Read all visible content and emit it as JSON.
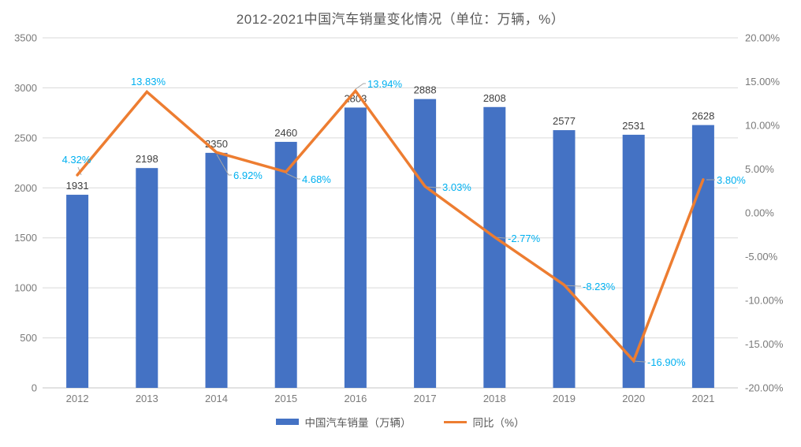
{
  "title": "2012-2021中国汽车销量变化情况（单位：万辆，%）",
  "chart_data": {
    "type": "bar+line",
    "categories": [
      "2012",
      "2013",
      "2014",
      "2015",
      "2016",
      "2017",
      "2018",
      "2019",
      "2020",
      "2021"
    ],
    "series": [
      {
        "name": "中国汽车销量（万辆）",
        "type": "bar",
        "color": "#4472C4",
        "values": [
          1931,
          2198,
          2350,
          2460,
          2803,
          2888,
          2808,
          2577,
          2531,
          2628
        ],
        "labels": [
          "1931",
          "2198",
          "2350",
          "2460",
          "2803",
          "2888",
          "2808",
          "2577",
          "2531",
          "2628"
        ],
        "label_color": "#404040"
      },
      {
        "name": "同比（%）",
        "type": "line",
        "color": "#ED7D31",
        "values": [
          4.32,
          13.83,
          6.92,
          4.68,
          13.94,
          3.03,
          -2.77,
          -8.23,
          -16.9,
          3.8
        ],
        "labels": [
          "4.32%",
          "13.83%",
          "6.92%",
          "4.68%",
          "13.94%",
          "3.03%",
          "-2.77%",
          "-8.23%",
          "-16.90%",
          "3.80%"
        ],
        "label_color": "#00B0F0"
      }
    ],
    "left_axis": {
      "min": 0,
      "max": 3500,
      "step": 500,
      "tick_labels": [
        "0",
        "500",
        "1000",
        "1500",
        "2000",
        "2500",
        "3000",
        "3500"
      ]
    },
    "right_axis": {
      "min": -20,
      "max": 20,
      "step": 5,
      "tick_labels": [
        "-20.00%",
        "-15.00%",
        "-10.00%",
        "-5.00%",
        "0.00%",
        "5.00%",
        "10.00%",
        "15.00%",
        "20.00%"
      ]
    },
    "grid": true,
    "legend_position": "bottom",
    "axis_text_color": "#7A7A7A",
    "gridline_color": "#D9D9D9",
    "leader_color": "#A6A6A6"
  }
}
